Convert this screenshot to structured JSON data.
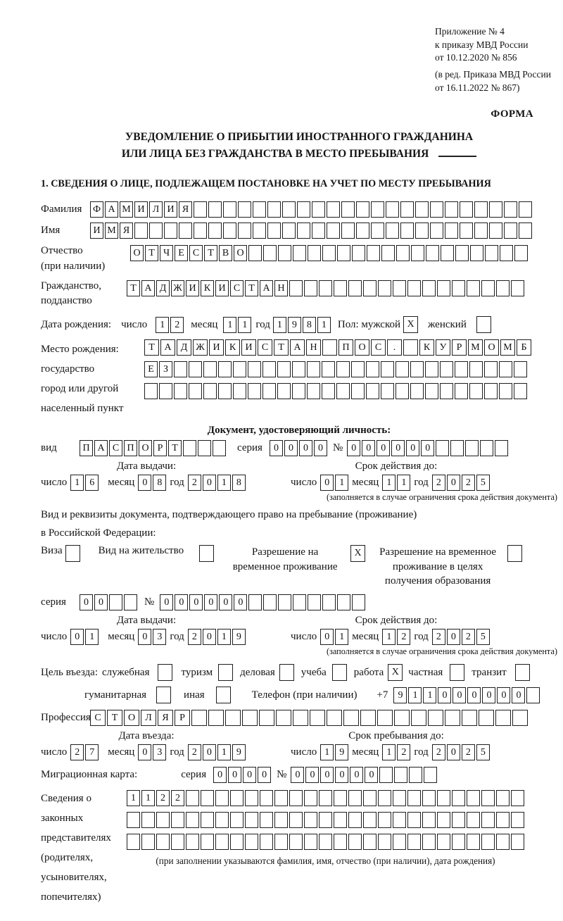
{
  "meta": {
    "appendix_lines": [
      "Приложение № 4",
      "к приказу МВД России",
      "от 10.12.2020 № 856"
    ],
    "revision_lines": [
      "(в ред. Приказа МВД России",
      "от 16.11.2022 № 867)"
    ],
    "form_label": "ФОРМА"
  },
  "title": {
    "line1": "УВЕДОМЛЕНИЕ О ПРИБЫТИИ ИНОСТРАННОГО ГРАЖДАНИНА",
    "line2": "ИЛИ ЛИЦА БЕЗ ГРАЖДАНСТВА В МЕСТО ПРЕБЫВАНИЯ"
  },
  "section1": {
    "title": "1. СВЕДЕНИЯ О ЛИЦЕ, ПОДЛЕЖАЩЕМ ПОСТАНОВКЕ НА УЧЕТ ПО МЕСТУ ПРЕБЫВАНИЯ"
  },
  "labels": {
    "surname": "Фамилия",
    "name": "Имя",
    "patronymic": "Отчество",
    "patronymic_note": "(при наличии)",
    "citizenship_1": "Гражданство,",
    "citizenship_2": "подданство",
    "birth_date": "Дата рождения:",
    "day": "число",
    "month": "месяц",
    "year": "год",
    "sex_male": "Пол: мужской",
    "sex_female": "женский",
    "birthplace_1": "Место рождения:",
    "birthplace_2": "государство",
    "birthplace_3": "город или другой",
    "birthplace_4": "населенный пункт",
    "identity_doc_title": "Документ, удостоверяющий личность:",
    "doc_type": "вид",
    "series": "серия",
    "number": "№",
    "issue_date": "Дата выдачи:",
    "valid_until": "Срок действия до:",
    "valid_note": "(заполняется в случае ограничения срока действия документа)",
    "residence_doc_1": "Вид и реквизиты документа, подтверждающего право на пребывание (проживание)",
    "residence_doc_2": "в Российской Федерации:",
    "visa": "Виза",
    "residence_permit": "Вид на жительство",
    "temp_residence": "Разрешение на временное проживание",
    "temp_residence_edu": "Разрешение на временное проживание в целях получения образования",
    "purpose_title": "Цель въезда:",
    "phone": "Телефон (при наличии)",
    "phone_prefix": "+7",
    "profession": "Профессия",
    "entry_date": "Дата въезда:",
    "stay_until": "Срок пребывания до:",
    "migration_card": "Миграционная карта:",
    "representatives_lines": [
      "Сведения о",
      "законных",
      "представителях",
      "(родителях,",
      "усыновителях,",
      "попечителях)"
    ],
    "representatives_note": "(при заполнении указываются фамилия, имя, отчество (при наличии), дата рождения)"
  },
  "purpose_options": [
    {
      "label": "служебная",
      "checked": ""
    },
    {
      "label": "туризм",
      "checked": ""
    },
    {
      "label": "деловая",
      "checked": ""
    },
    {
      "label": "учеба",
      "checked": ""
    },
    {
      "label": "работа",
      "checked": "X"
    },
    {
      "label": "частная",
      "checked": ""
    },
    {
      "label": "транзит",
      "checked": ""
    },
    {
      "label": "гуманитарная",
      "checked": ""
    },
    {
      "label": "иная",
      "checked": ""
    }
  ],
  "checks": {
    "male": "X",
    "female": "",
    "visa": "",
    "residence_permit": "",
    "temp_residence": "X",
    "temp_residence_edu": ""
  },
  "cells": {
    "surname": {
      "count": 30,
      "value": "ФАМИЛИЯ"
    },
    "name": {
      "count": 30,
      "value": "ИМЯ"
    },
    "patronymic": {
      "count": 27,
      "value": "ОТЧЕСТВО"
    },
    "citizenship": {
      "count": 27,
      "value": "ТАДЖИКИСТАН"
    },
    "birth_day": {
      "count": 2,
      "value": "12"
    },
    "birth_month": {
      "count": 2,
      "value": "11"
    },
    "birth_year": {
      "count": 4,
      "value": "1981"
    },
    "birthplace_row1": {
      "count": 24,
      "value": "ТАДЖИКИСТАН ПОС. КУРМОМБ",
      "w": 19
    },
    "birthplace_row2": {
      "count": 26,
      "value": "ЕЗ"
    },
    "birthplace_row3": {
      "count": 26,
      "value": ""
    },
    "doc_type": {
      "count": 10,
      "value": "ПАСПОРТ"
    },
    "doc_series": {
      "count": 4,
      "value": "0000"
    },
    "doc_number": {
      "count": 11,
      "value": "000000"
    },
    "doc_issue_day": {
      "count": 2,
      "value": "16"
    },
    "doc_issue_month": {
      "count": 2,
      "value": "08"
    },
    "doc_issue_year": {
      "count": 4,
      "value": "2018"
    },
    "doc_valid_day": {
      "count": 2,
      "value": "01"
    },
    "doc_valid_month": {
      "count": 2,
      "value": "11"
    },
    "doc_valid_year": {
      "count": 4,
      "value": "2025"
    },
    "permit_series": {
      "count": 4,
      "value": "00"
    },
    "permit_number": {
      "count": 14,
      "value": "000000"
    },
    "permit_issue_day": {
      "count": 2,
      "value": "01"
    },
    "permit_issue_month": {
      "count": 2,
      "value": "03"
    },
    "permit_issue_year": {
      "count": 4,
      "value": "2019"
    },
    "permit_valid_day": {
      "count": 2,
      "value": "01"
    },
    "permit_valid_month": {
      "count": 2,
      "value": "12"
    },
    "permit_valid_year": {
      "count": 4,
      "value": "2025"
    },
    "phone": {
      "count": 10,
      "value": "911000000"
    },
    "profession": {
      "count": 26,
      "value": "СТОЛЯР",
      "w": 20
    },
    "entry_day": {
      "count": 2,
      "value": "27"
    },
    "entry_month": {
      "count": 2,
      "value": "03"
    },
    "entry_year": {
      "count": 4,
      "value": "2019"
    },
    "stay_day": {
      "count": 2,
      "value": "19"
    },
    "stay_month": {
      "count": 2,
      "value": "12"
    },
    "stay_year": {
      "count": 4,
      "value": "2025"
    },
    "mig_series": {
      "count": 4,
      "value": "0000"
    },
    "mig_number": {
      "count": 10,
      "value": "000000"
    },
    "rep_row1": {
      "count": 27,
      "value": "1122"
    },
    "rep_row2": {
      "count": 27,
      "value": ""
    },
    "rep_row3": {
      "count": 27,
      "value": ""
    }
  }
}
